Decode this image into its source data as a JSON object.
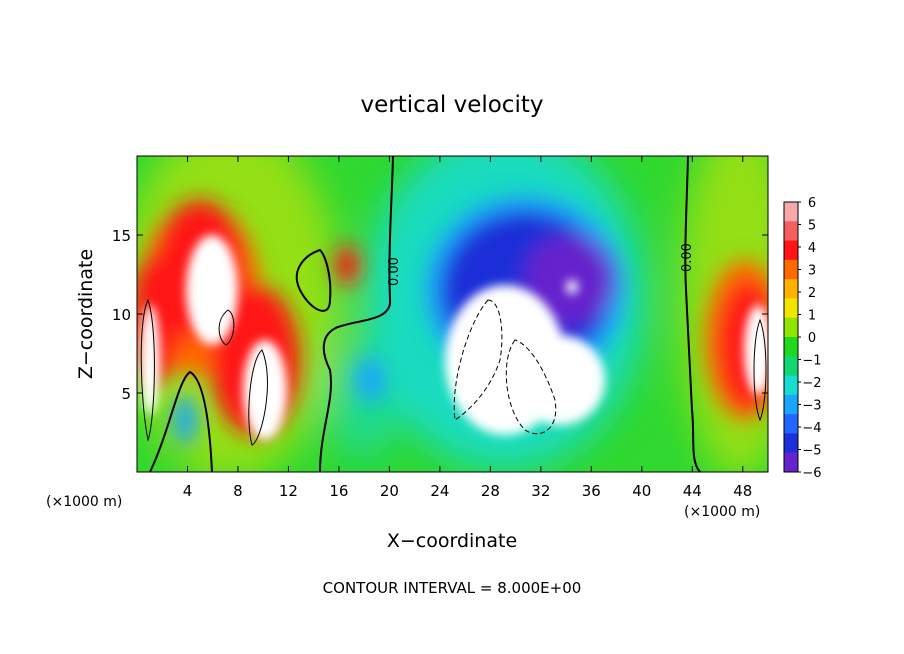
{
  "chart_data": {
    "type": "heatmap",
    "title": "vertical velocity",
    "xlabel": "X−coordinate",
    "ylabel": "Z−coordinate",
    "x_unit_left": "(×1000 m)",
    "x_unit_right": "(×1000 m)",
    "xlim": [
      0,
      50
    ],
    "ylim": [
      0,
      20
    ],
    "x_ticks": [
      4,
      8,
      12,
      16,
      20,
      24,
      28,
      32,
      36,
      40,
      44,
      48
    ],
    "y_ticks": [
      5,
      10,
      15
    ],
    "colorbar": {
      "ticks": [
        "6",
        "5",
        "4",
        "3",
        "2",
        "1",
        "0",
        "−1",
        "−2",
        "−3",
        "−4",
        "−5",
        "−6"
      ],
      "colors": [
        "#f7a9a9",
        "#f45f5f",
        "#ff1515",
        "#ff6a00",
        "#ffb300",
        "#f2e600",
        "#8fe400",
        "#1ed91e",
        "#12d672",
        "#18dcd0",
        "#1aa6ff",
        "#2266ff",
        "#1c2fd8",
        "#6622cc"
      ],
      "range": [
        -6,
        6
      ]
    },
    "contour_labels": [
      "0.00",
      "0.00"
    ],
    "footer": "CONTOUR INTERVAL = 8.000E+00",
    "features": [
      {
        "kind": "updraft",
        "x": 5.5,
        "z": 11,
        "rx": 2.2,
        "rz": 4.5,
        "value": 7
      },
      {
        "kind": "updraft",
        "x": 9,
        "z": 6,
        "rx": 2,
        "rz": 5,
        "value": 7
      },
      {
        "kind": "updraft",
        "x": 2,
        "z": 8,
        "rx": 1.6,
        "rz": 5,
        "value": 6
      },
      {
        "kind": "updraft",
        "x": 47.5,
        "z": 7,
        "rx": 2.2,
        "rz": 5,
        "value": 6
      },
      {
        "kind": "updraft",
        "x": 16.3,
        "z": 12,
        "rx": 1,
        "rz": 1.8,
        "value": 4
      },
      {
        "kind": "downdraft",
        "x": 30,
        "z": 9,
        "rx": 6,
        "rz": 6,
        "value": -6
      },
      {
        "kind": "downdraft",
        "x": 31,
        "z": 13,
        "rx": 8,
        "rz": 5,
        "value": -4
      },
      {
        "kind": "downdraft",
        "x": 29,
        "z": 7,
        "rx": 5,
        "rz": 4,
        "value": -7
      },
      {
        "kind": "downdraft",
        "x": 4,
        "z": 3,
        "rx": 0.8,
        "rz": 2,
        "value": -4
      },
      {
        "kind": "downdraft",
        "x": 18.5,
        "z": 5,
        "rx": 1.2,
        "rz": 2,
        "value": -3
      }
    ]
  }
}
